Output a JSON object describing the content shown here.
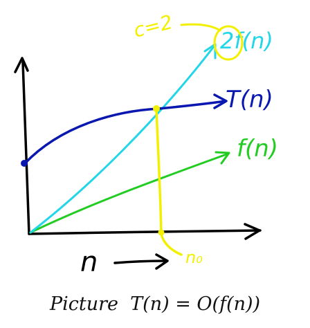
{
  "labels": {
    "t_of_n": "T(n)",
    "two_f_of_n": "2f(n)",
    "f_of_n": "f(n)",
    "c_equals": "c=2",
    "n_zero": "n₀",
    "n_axis": "n"
  },
  "caption": "Picture  T(n) = O(f(n))",
  "colors": {
    "axes": "#000000",
    "t_curve": "#0a18b0",
    "two_f_curve": "#22d6e8",
    "f_curve": "#22cc22",
    "annotation": "#f2f000"
  }
}
